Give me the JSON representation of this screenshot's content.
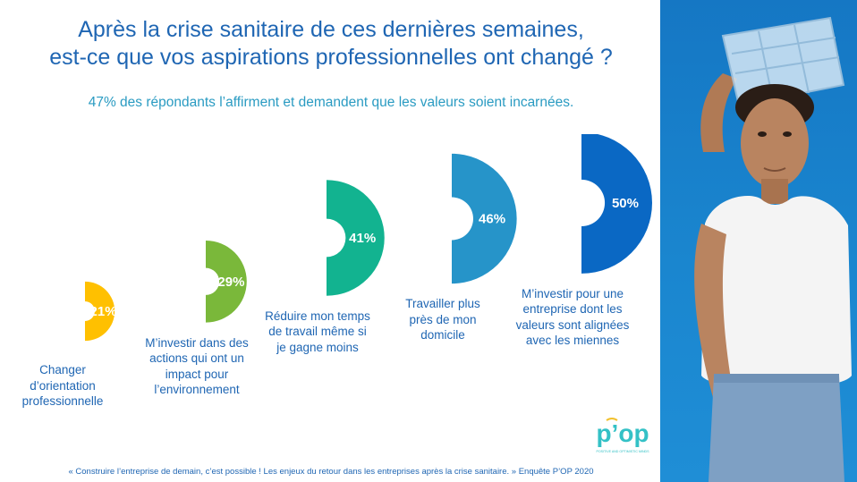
{
  "title": {
    "line1": "Après la crise sanitaire de ces dernières semaines,",
    "line2": "est-ce que vos aspirations professionnelles ont changé ?"
  },
  "subtitle": "47% des répondants l’affirment et demandent que les valeurs soient incarnées.",
  "chart_data": {
    "type": "pie",
    "title": "",
    "categories": [
      "Changer d’orientation professionnelle",
      "M’investir dans des actions qui ont un impact pour l’environnement",
      "Réduire mon temps de travail même si je gagne moins",
      "Travailler plus près de mon domicile",
      "M’investir pour une entreprise dont les valeurs sont alignées avec les miennes"
    ],
    "values": [
      21,
      29,
      41,
      46,
      50
    ],
    "value_labels": [
      "21%",
      "29%",
      "41%",
      "46%",
      "50%"
    ],
    "colors": [
      "#ffc000",
      "#7ab83a",
      "#12b390",
      "#2694c9",
      "#0a68c4"
    ]
  },
  "labels": [
    "Changer\nd’orientation\nprofessionnelle",
    "M’investir dans des\nactions qui ont un\nimpact pour\nl’environnement",
    "Réduire mon temps\nde travail même si\nje gagne moins",
    "Travailler plus\nprès de mon\ndomicile",
    "M’investir pour une\nentreprise dont les\nvaleurs sont alignées\navec les miennes"
  ],
  "footnote": "« Construire l’entreprise de demain, c’est possible ! Les enjeux du retour dans les entreprises après la crise sanitaire. » Enquête P’OP 2020",
  "logo": {
    "text": "p’op",
    "tagline": "POSITIVE AND OPTIMISTIC MINDS",
    "color": "#34c1c6",
    "accent": "#f2c12e"
  },
  "photo": {
    "background": "#1a82cc"
  }
}
